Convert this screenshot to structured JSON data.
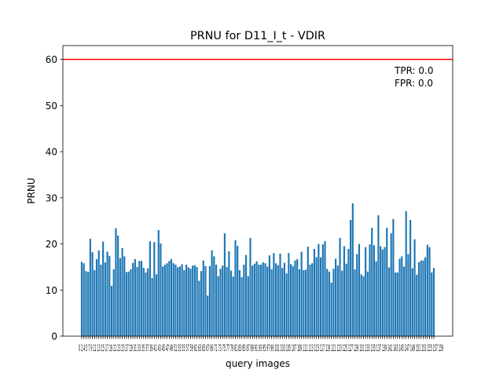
{
  "chart_data": {
    "type": "bar",
    "title": "PRNU for D11_I_t - VDIR",
    "xlabel": "query images",
    "ylabel": "PRNU",
    "ylim": [
      0,
      63
    ],
    "yticks": [
      0,
      10,
      20,
      30,
      40,
      50,
      60
    ],
    "grid": false,
    "bar_color": "#1f77b4",
    "threshold": {
      "value": 60,
      "color": "#ff0000"
    },
    "annotations": [
      "TPR: 0.0",
      "FPR: 0.0"
    ],
    "x_tick_label_text": "0 2 4 5 7 9 11 13 15 17 19 21 23 25 27 29 31 33 35 37 39 41 43 45 47 49 51 53 55 57 59 61 63 65 67 69 71 73 75 77 79 81 83 85 87 89 91 93 95 97 99 101 103 105 107 109 111 113 115 117 119 121 123 125 127 129 131 133 135 137 139 141 143 145 147 149 151 153 155 157 159",
    "values": [
      16.1,
      15.8,
      14.1,
      13.9,
      21.1,
      18.2,
      14.3,
      16.7,
      18.6,
      15.5,
      20.5,
      16.0,
      18.3,
      17.4,
      10.9,
      14.5,
      23.4,
      21.8,
      16.9,
      19.1,
      17.3,
      13.9,
      14.0,
      14.5,
      15.9,
      16.7,
      15.0,
      16.3,
      16.3,
      14.8,
      13.8,
      14.7,
      20.6,
      12.6,
      20.4,
      13.4,
      23.0,
      20.1,
      15.1,
      15.5,
      15.8,
      16.3,
      16.7,
      15.8,
      15.5,
      14.9,
      15.1,
      15.6,
      14.3,
      15.5,
      14.9,
      14.6,
      15.3,
      15.4,
      15.0,
      12.0,
      14.1,
      16.4,
      15.2,
      8.8,
      15.2,
      18.6,
      17.3,
      15.5,
      13.0,
      14.6,
      15.3,
      22.3,
      15.0,
      18.4,
      14.2,
      12.9,
      20.8,
      19.6,
      14.3,
      12.8,
      15.5,
      17.6,
      13.0,
      21.3,
      15.3,
      15.7,
      16.2,
      15.5,
      15.5,
      16.0,
      15.8,
      15.1,
      17.5,
      14.5,
      18.0,
      15.8,
      15.4,
      17.9,
      14.8,
      15.9,
      13.6,
      18.0,
      15.6,
      15.2,
      16.4,
      16.7,
      14.5,
      18.3,
      14.3,
      14.4,
      19.4,
      15.5,
      15.8,
      18.9,
      17.1,
      20.0,
      17.1,
      19.9,
      20.6,
      14.6,
      14.0,
      11.6,
      14.6,
      16.8,
      15.3,
      21.3,
      14.2,
      19.5,
      15.7,
      18.9,
      25.2,
      28.8,
      14.5,
      17.8,
      20.0,
      13.4,
      13.0,
      19.3,
      14.0,
      19.9,
      23.5,
      19.7,
      16.2,
      26.2,
      19.5,
      18.8,
      19.3,
      23.5,
      14.9,
      22.3,
      25.4,
      13.8,
      13.8,
      16.8,
      17.3,
      15.1,
      27.1,
      17.8,
      25.2,
      14.7,
      21.0,
      13.3,
      16.0,
      16.4,
      16.4,
      17.1,
      19.8,
      19.3,
      13.8,
      14.8
    ]
  }
}
